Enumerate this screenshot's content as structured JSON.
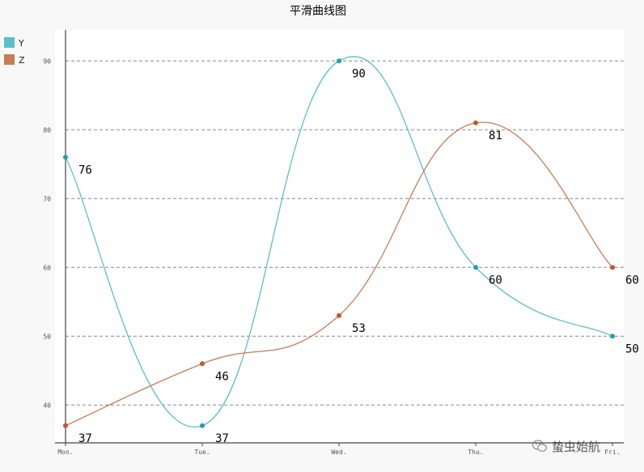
{
  "chart_data": {
    "type": "line",
    "title": "平滑曲线图",
    "smooth": true,
    "categories": [
      "Mon.",
      "Tue.",
      "Wed.",
      "Thu.",
      "Fri."
    ],
    "series": [
      {
        "name": "Y",
        "values": [
          76,
          37,
          90,
          60,
          50
        ],
        "color": "#5bc0c8"
      },
      {
        "name": "Z",
        "values": [
          37,
          46,
          53,
          81,
          60
        ],
        "color": "#c87d55"
      }
    ],
    "y_ticks": [
      40,
      50,
      60,
      70,
      80,
      90
    ],
    "ylim": [
      34.5,
      94.5
    ],
    "grid": "horizontal dashed",
    "legend_position": "top-left"
  },
  "watermark": {
    "text": "蛰虫始航",
    "icon": "wechat-icon"
  }
}
